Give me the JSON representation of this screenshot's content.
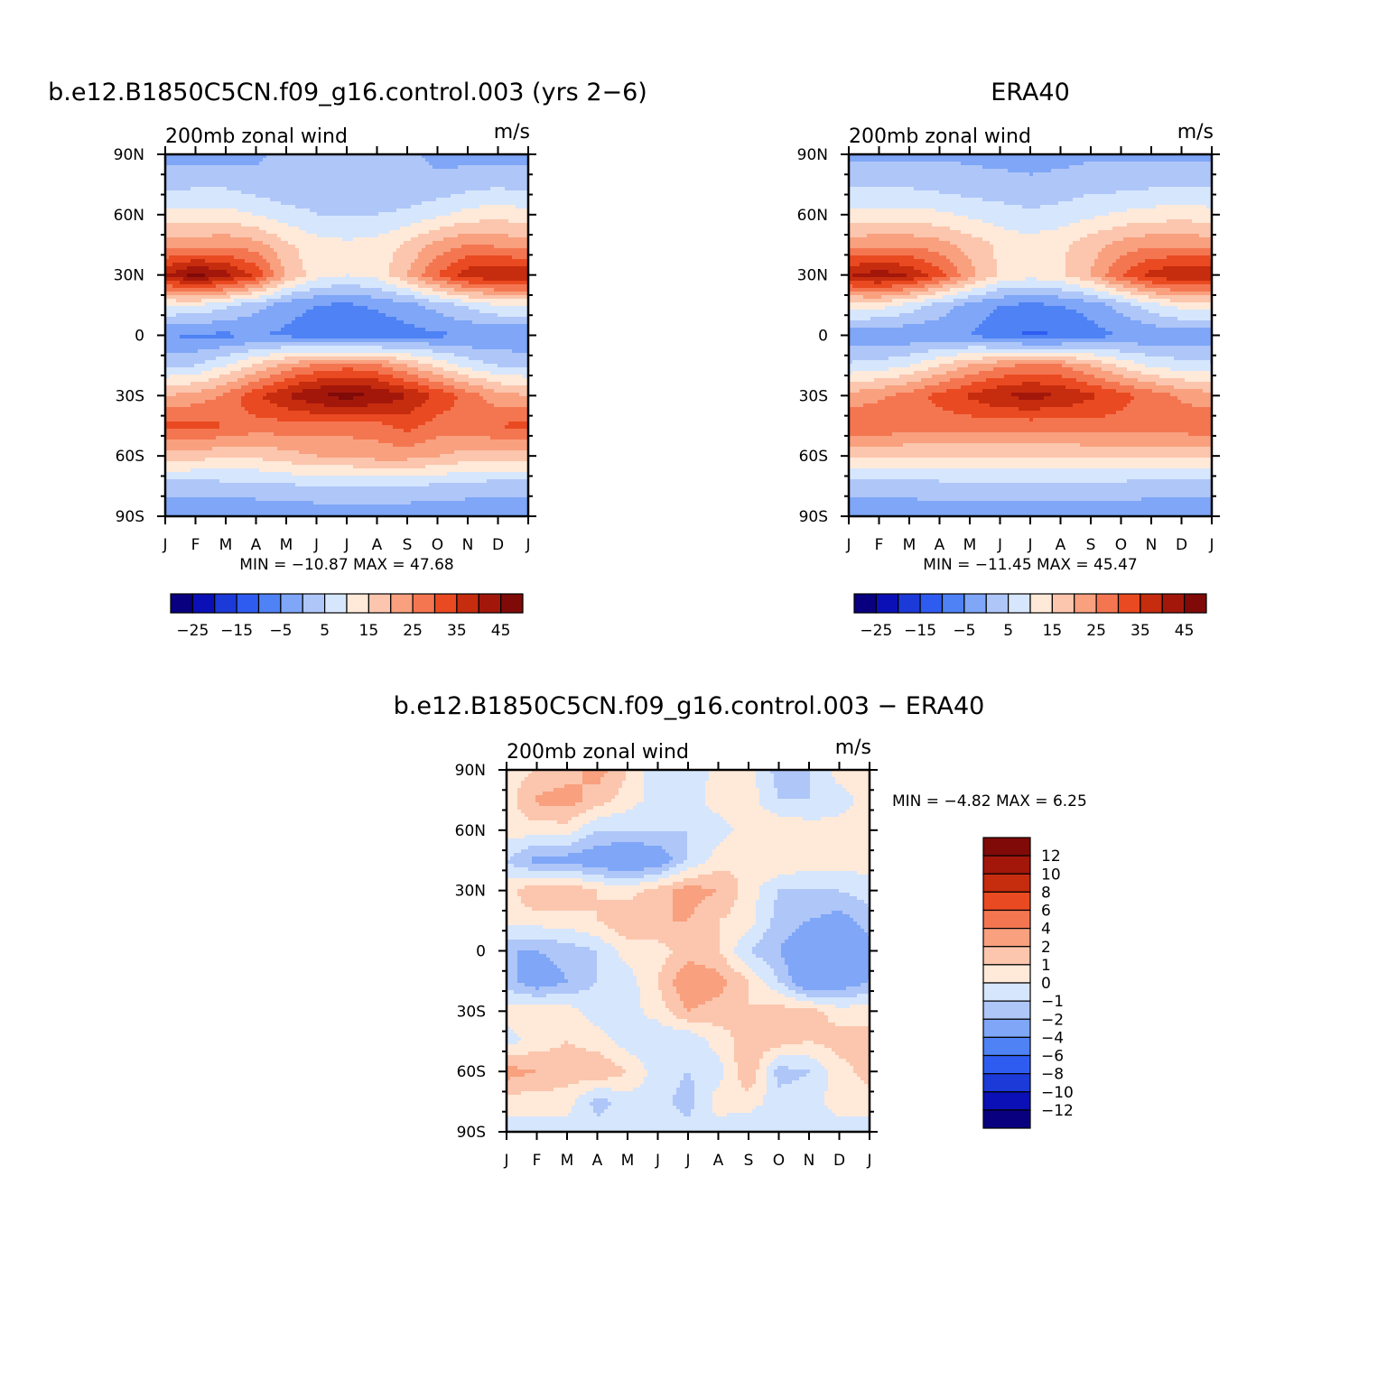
{
  "palette": {
    "u_fill_colors": [
      "#08007f",
      "#0a10b6",
      "#1c3ad8",
      "#2f5cf0",
      "#4e82f5",
      "#7fa6f7",
      "#afc6f8",
      "#d6e6fd",
      "#ffe9d9",
      "#fbc6ad",
      "#f9a07f",
      "#f47651",
      "#ea4a21",
      "#c62c0e",
      "#a3170b",
      "#7f0a08"
    ],
    "diff_fill_colors": [
      "#08007f",
      "#0a10b6",
      "#1c3ad8",
      "#2f5cf0",
      "#4e82f5",
      "#7fa6f7",
      "#afc6f8",
      "#d6e6fd",
      "#ffe9d9",
      "#fbc6ad",
      "#f9a07f",
      "#f47651",
      "#ea4a21",
      "#c62c0e",
      "#a3170b",
      "#7f0a08"
    ]
  },
  "axes": {
    "month_ticks": [
      "J",
      "F",
      "M",
      "A",
      "M",
      "J",
      "J",
      "A",
      "S",
      "O",
      "N",
      "D",
      "J"
    ],
    "lat_ticks": [
      "90N",
      "60N",
      "30N",
      "0",
      "30S",
      "60S",
      "90S"
    ]
  },
  "panels": {
    "model": {
      "title": "b.e12.B1850C5CN.f09_g16.control.003 (yrs 2−6)",
      "left_label": "200mb zonal wind",
      "right_label": "m/s",
      "stats": "MIN = −10.87 MAX =   47.68"
    },
    "obs": {
      "title": "ERA40",
      "left_label": "200mb zonal wind",
      "right_label": "m/s",
      "stats": "MIN = −11.45 MAX =   45.47"
    },
    "diff": {
      "title": "b.e12.B1850C5CN.f09_g16.control.003 − ERA40",
      "left_label": "200mb zonal wind",
      "right_label": "m/s",
      "stats": "MIN =   −4.82 MAX =    6.25"
    }
  },
  "colorbars": {
    "u_labels": [
      "−25",
      "−15",
      "−5",
      "5",
      "15",
      "25",
      "35",
      "45"
    ],
    "diff_labels": [
      "12",
      "10",
      "8",
      "6",
      "4",
      "2",
      "1",
      "0",
      "−1",
      "−2",
      "−4",
      "−6",
      "−8",
      "−10",
      "−12"
    ]
  },
  "chart_data": [
    {
      "type": "heatmap",
      "title": "b.e12.B1850C5CN.f09_g16.control.003 (yrs 2−6)",
      "subtitle": "200mb zonal wind",
      "units": "m/s",
      "x": [
        "J",
        "F",
        "M",
        "A",
        "M",
        "J",
        "J",
        "A",
        "S",
        "O",
        "N",
        "D",
        "J"
      ],
      "y": [
        90,
        75,
        60,
        45,
        30,
        15,
        0,
        -15,
        -30,
        -45,
        -60,
        -75,
        -90
      ],
      "y_tick_labels": [
        "90N",
        "60N",
        "30N",
        "0",
        "30S",
        "60S",
        "90S"
      ],
      "levels": [
        -30,
        -25,
        -20,
        -15,
        -10,
        -5,
        0,
        5,
        10,
        15,
        20,
        25,
        30,
        35,
        40,
        45,
        50
      ],
      "colorbar_labels": [
        "−25",
        "−15",
        "−5",
        "5",
        "15",
        "25",
        "35",
        "45"
      ],
      "min": -10.87,
      "max": 47.68,
      "z": [
        [
          -2,
          -2,
          -2,
          -1,
          2,
          3,
          3,
          2,
          1,
          -1,
          -2,
          -2,
          -2
        ],
        [
          3,
          4,
          4,
          2,
          1,
          2,
          2,
          2,
          1,
          1,
          3,
          4,
          3
        ],
        [
          12,
          12,
          12,
          10,
          7,
          5,
          5,
          5,
          6,
          9,
          12,
          13,
          12
        ],
        [
          22,
          23,
          24,
          22,
          16,
          12,
          11,
          12,
          16,
          22,
          25,
          24,
          22
        ],
        [
          40,
          47,
          42,
          34,
          20,
          12,
          10,
          12,
          20,
          30,
          38,
          40,
          40
        ],
        [
          10,
          10,
          6,
          2,
          -3,
          -5,
          -6,
          -4,
          -2,
          2,
          6,
          10,
          10
        ],
        [
          -5,
          -6,
          -6,
          -5,
          -6,
          -8,
          -10,
          -9,
          -7,
          -6,
          -5,
          -5,
          -5
        ],
        [
          4,
          5,
          10,
          16,
          22,
          26,
          28,
          26,
          20,
          14,
          8,
          5,
          4
        ],
        [
          20,
          22,
          26,
          34,
          40,
          45,
          47,
          45,
          40,
          34,
          28,
          22,
          20
        ],
        [
          32,
          32,
          30,
          28,
          28,
          28,
          28,
          28,
          32,
          28,
          28,
          30,
          32
        ],
        [
          18,
          17,
          16,
          16,
          18,
          20,
          20,
          22,
          22,
          20,
          18,
          18,
          18
        ],
        [
          2,
          2,
          3,
          3,
          4,
          5,
          5,
          5,
          5,
          4,
          3,
          2,
          2
        ],
        [
          -4,
          -4,
          -4,
          -4,
          -4,
          -4,
          -4,
          -4,
          -4,
          -4,
          -4,
          -4,
          -4
        ]
      ]
    },
    {
      "type": "heatmap",
      "title": "ERA40",
      "subtitle": "200mb zonal wind",
      "units": "m/s",
      "x": [
        "J",
        "F",
        "M",
        "A",
        "M",
        "J",
        "J",
        "A",
        "S",
        "O",
        "N",
        "D",
        "J"
      ],
      "y": [
        90,
        75,
        60,
        45,
        30,
        15,
        0,
        -15,
        -30,
        -45,
        -60,
        -75,
        -90
      ],
      "y_tick_labels": [
        "90N",
        "60N",
        "30N",
        "0",
        "30S",
        "60S",
        "90S"
      ],
      "levels": [
        -30,
        -25,
        -20,
        -15,
        -10,
        -5,
        0,
        5,
        10,
        15,
        20,
        25,
        30,
        35,
        40,
        45,
        50
      ],
      "colorbar_labels": [
        "−25",
        "−15",
        "−5",
        "5",
        "15",
        "25",
        "35",
        "45"
      ],
      "min": -11.45,
      "max": 45.47,
      "z": [
        [
          -1,
          -1,
          -1,
          -1,
          -1,
          -2,
          -2,
          -2,
          -1,
          -1,
          -1,
          -1,
          -1
        ],
        [
          4,
          4,
          4,
          3,
          2,
          2,
          1,
          2,
          3,
          3,
          4,
          4,
          4
        ],
        [
          12,
          12,
          12,
          11,
          9,
          7,
          6,
          7,
          9,
          11,
          12,
          13,
          12
        ],
        [
          23,
          24,
          24,
          22,
          18,
          14,
          12,
          14,
          18,
          22,
          24,
          24,
          23
        ],
        [
          40,
          43,
          40,
          32,
          22,
          14,
          12,
          14,
          20,
          30,
          37,
          40,
          40
        ],
        [
          12,
          12,
          8,
          3,
          -2,
          -5,
          -6,
          -5,
          -3,
          2,
          8,
          12,
          12
        ],
        [
          -3,
          -4,
          -4,
          -4,
          -5,
          -8,
          -11,
          -10,
          -7,
          -5,
          -4,
          -3,
          -3
        ],
        [
          6,
          7,
          10,
          15,
          20,
          24,
          26,
          25,
          20,
          14,
          9,
          7,
          6
        ],
        [
          22,
          24,
          27,
          32,
          36,
          40,
          42,
          40,
          36,
          32,
          28,
          24,
          22
        ],
        [
          30,
          29,
          28,
          27,
          27,
          27,
          27,
          27,
          28,
          28,
          27,
          28,
          30
        ],
        [
          16,
          16,
          15,
          15,
          15,
          15,
          15,
          15,
          16,
          16,
          16,
          16,
          16
        ],
        [
          2,
          2,
          2,
          3,
          3,
          3,
          3,
          3,
          3,
          3,
          2,
          2,
          2
        ],
        [
          -3,
          -3,
          -3,
          -3,
          -3,
          -3,
          -3,
          -3,
          -3,
          -3,
          -3,
          -3,
          -3
        ]
      ]
    },
    {
      "type": "heatmap",
      "title": "b.e12.B1850C5CN.f09_g16.control.003 − ERA40",
      "subtitle": "200mb zonal wind",
      "units": "m/s",
      "x": [
        "J",
        "F",
        "M",
        "A",
        "M",
        "J",
        "J",
        "A",
        "S",
        "O",
        "N",
        "D",
        "J"
      ],
      "y": [
        90,
        75,
        60,
        45,
        30,
        15,
        0,
        -15,
        -30,
        -45,
        -60,
        -75,
        -90
      ],
      "y_tick_labels": [
        "90N",
        "60N",
        "30N",
        "0",
        "30S",
        "60S",
        "90S"
      ],
      "levels": [
        -14,
        -12,
        -10,
        -8,
        -6,
        -4,
        -2,
        -1,
        0,
        1,
        2,
        4,
        6,
        8,
        10,
        12,
        14
      ],
      "colorbar_labels": [
        "12",
        "10",
        "8",
        "6",
        "4",
        "2",
        "1",
        "0",
        "−1",
        "−2",
        "−4",
        "−6",
        "−8",
        "−10",
        "−12"
      ],
      "min": -4.82,
      "max": 6.25,
      "z": [
        [
          0.5,
          1,
          1.5,
          2.5,
          1,
          -1,
          -1,
          0.5,
          0.5,
          -1.5,
          -1,
          0.5,
          0.5
        ],
        [
          0.5,
          2.2,
          2.5,
          1.5,
          0.5,
          -0.5,
          -0.5,
          0.5,
          0.5,
          -1,
          -1,
          -0.5,
          0.5
        ],
        [
          0.5,
          0.5,
          0.5,
          -1,
          -1,
          -1,
          -1,
          -0.5,
          0.5,
          1,
          0.5,
          0.5,
          0.5
        ],
        [
          -1,
          -2.5,
          -2.5,
          -3,
          -3.5,
          -3,
          -1,
          0.5,
          1,
          1,
          0.5,
          0.5,
          0.5
        ],
        [
          0.5,
          2,
          2,
          1,
          0.5,
          1.5,
          2.5,
          2,
          0.5,
          -1,
          -1,
          -1,
          -0.5
        ],
        [
          0.5,
          0.5,
          0.5,
          1,
          2,
          2,
          2,
          1,
          0.5,
          -1.5,
          -2,
          -2.5,
          -1.5
        ],
        [
          -2,
          -2,
          -1.5,
          -1,
          0.5,
          0.5,
          1.5,
          1,
          -1,
          -2,
          -3,
          -3,
          -2.5
        ],
        [
          -1.5,
          -3,
          -2,
          -1,
          -0.5,
          1,
          3,
          2.5,
          1,
          -1,
          -3.5,
          -3,
          -2
        ],
        [
          0.5,
          1,
          0.5,
          -0.5,
          -0.5,
          0.5,
          2,
          1.5,
          1,
          1.5,
          1.5,
          0.5,
          0.5
        ],
        [
          -0.5,
          0.5,
          1,
          0.5,
          -0.5,
          -1,
          -1,
          0.5,
          1.5,
          1.5,
          1,
          1.5,
          1.5
        ],
        [
          2.5,
          2,
          1.5,
          2,
          1,
          -0.5,
          -1,
          -0.5,
          2,
          -1.5,
          -1,
          0.5,
          1.5
        ],
        [
          0.5,
          0.5,
          0.5,
          -1.5,
          -0.5,
          -0.5,
          -1.5,
          0.5,
          0.5,
          -0.5,
          -0.5,
          0.5,
          0.5
        ],
        [
          -0.5,
          -0.5,
          -0.5,
          -0.5,
          -0.5,
          -0.5,
          -0.5,
          -0.5,
          -1,
          -0.5,
          -0.5,
          -0.5,
          -0.5
        ]
      ]
    }
  ]
}
